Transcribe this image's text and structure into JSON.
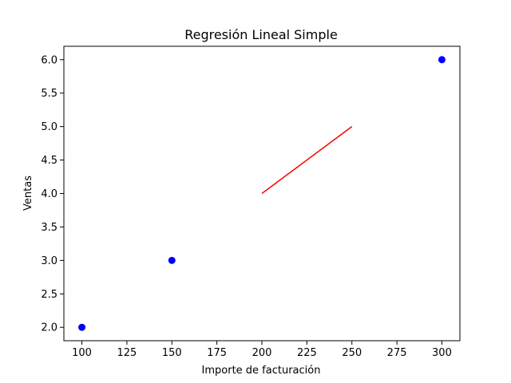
{
  "chart_data": {
    "type": "scatter",
    "title": "Regresión Lineal Simple",
    "xlabel": "Importe de facturación",
    "ylabel": "Ventas",
    "xlim": [
      90,
      310
    ],
    "ylim": [
      1.8,
      6.2
    ],
    "xticks": [
      100,
      125,
      150,
      175,
      200,
      225,
      250,
      275,
      300
    ],
    "yticks": [
      2.0,
      2.5,
      3.0,
      3.5,
      4.0,
      4.5,
      5.0,
      5.5,
      6.0
    ],
    "grid": false,
    "legend": "none",
    "points": {
      "color": "#0000ff",
      "x": [
        100,
        150,
        300
      ],
      "y": [
        2.0,
        3.0,
        6.0
      ]
    },
    "line": {
      "color": "#ff0000",
      "x": [
        200,
        250
      ],
      "y": [
        4.0,
        5.0
      ]
    }
  }
}
